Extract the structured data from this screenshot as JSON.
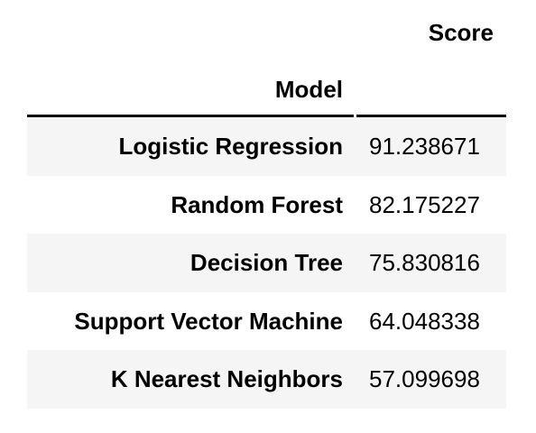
{
  "table": {
    "value_column_header": "Score",
    "index_name": "Model",
    "rows": [
      {
        "model": "Logistic Regression",
        "score": "91.238671"
      },
      {
        "model": "Random Forest",
        "score": "82.175227"
      },
      {
        "model": "Decision Tree",
        "score": "75.830816"
      },
      {
        "model": "Support Vector Machine",
        "score": "64.048338"
      },
      {
        "model": "K Nearest Neighbors",
        "score": "57.099698"
      }
    ]
  },
  "colors": {
    "shaded_row": "#f5f5f5",
    "text": "#000000",
    "background": "#ffffff"
  }
}
